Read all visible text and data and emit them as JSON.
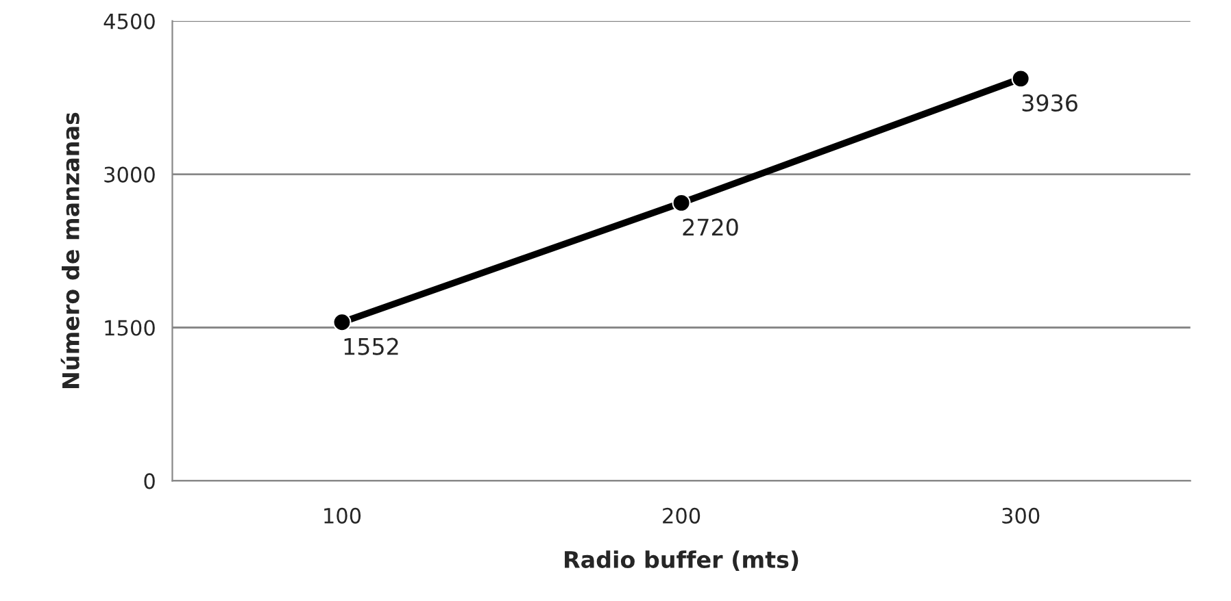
{
  "chart_data": {
    "type": "line",
    "xlabel": "Radio buffer (mts)",
    "ylabel": "Número de manzanas",
    "categories": [
      "100",
      "200",
      "300"
    ],
    "series": [
      {
        "color": "#000000",
        "values": [
          1552,
          2720,
          3936
        ]
      }
    ],
    "ylim": [
      0,
      4500
    ],
    "yticks": [
      0,
      1500,
      3000,
      4500
    ],
    "grid": "y",
    "marker": "circle",
    "line_style": "solid",
    "data_labels": true
  }
}
